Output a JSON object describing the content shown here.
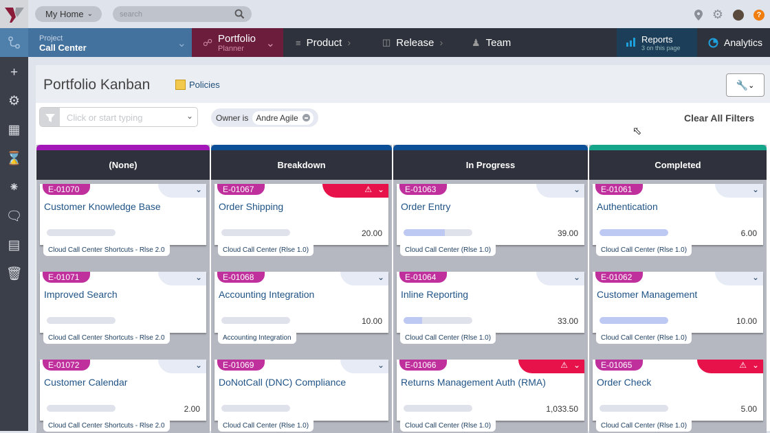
{
  "topbar": {
    "home": "My Home",
    "search_placeholder": "search"
  },
  "nav": {
    "project_label": "Project",
    "project_name": "Call Center",
    "portfolio": "Portfolio",
    "portfolio_sub": "Planner",
    "product": "Product",
    "release": "Release",
    "team": "Team",
    "reports": "Reports",
    "reports_sub": "3 on this page",
    "analytics": "Analytics"
  },
  "page": {
    "title": "Portfolio Kanban",
    "policies": "Policies",
    "filter_placeholder": "Click or start typing",
    "chip_label": "Owner is",
    "chip_value": "Andre Agile",
    "clear": "Clear All Filters"
  },
  "colors": {
    "card_id": "#c0309d",
    "warning": "#e8124b"
  },
  "columns": [
    {
      "name": "(None)",
      "color": "#a317b8",
      "cards": [
        {
          "id": "E-01070",
          "name": "Customer Knowledge Base",
          "value": "",
          "progress": 0,
          "tag": "Cloud Call Center Shortcuts - Rlse 2.0",
          "warning": false
        },
        {
          "id": "E-01071",
          "name": "Improved Search",
          "value": "",
          "progress": 0,
          "tag": "Cloud Call Center Shortcuts - Rlse 2.0",
          "warning": false
        },
        {
          "id": "E-01072",
          "name": "Customer Calendar",
          "value": "2.00",
          "progress": 0,
          "tag": "Cloud Call Center Shortcuts - Rlse 2.0",
          "warning": false
        }
      ]
    },
    {
      "name": "Breakdown",
      "color": "#0c4f97",
      "cards": [
        {
          "id": "E-01067",
          "name": "Order Shipping",
          "value": "20.00",
          "progress": 0,
          "tag": "Cloud Call Center (Rlse 1.0)",
          "warning": true
        },
        {
          "id": "E-01068",
          "name": "Accounting Integration",
          "value": "10.00",
          "progress": 0,
          "tag": "Accounting Integration",
          "warning": false
        },
        {
          "id": "E-01069",
          "name": "DoNotCall (DNC) Compliance",
          "value": "",
          "progress": 0,
          "tag": "Cloud Call Center (Rlse 1.0)",
          "warning": false
        }
      ]
    },
    {
      "name": "In Progress",
      "color": "#0c4f97",
      "cards": [
        {
          "id": "E-01063",
          "name": "Order Entry",
          "value": "39.00",
          "progress": 60,
          "tag": "Cloud Call Center (Rlse 1.0)",
          "warning": false
        },
        {
          "id": "E-01064",
          "name": "Inline Reporting",
          "value": "33.00",
          "progress": 27,
          "tag": "Cloud Call Center (Rlse 1.0)",
          "warning": false
        },
        {
          "id": "E-01066",
          "name": "Returns Management Auth (RMA)",
          "value": "1,033.50",
          "progress": 0,
          "tag": "Cloud Call Center (Rlse 1.0)",
          "warning": true
        }
      ]
    },
    {
      "name": "Completed",
      "color": "#14a58a",
      "cards": [
        {
          "id": "E-01061",
          "name": "Authentication",
          "value": "6.00",
          "progress": 100,
          "tag": "Cloud Call Center (Rlse 1.0)",
          "warning": false
        },
        {
          "id": "E-01062",
          "name": "Customer Management",
          "value": "10.00",
          "progress": 100,
          "tag": "Cloud Call Center (Rlse 1.0)",
          "warning": false
        },
        {
          "id": "E-01065",
          "name": "Order Check",
          "value": "5.00",
          "progress": 0,
          "tag": "Cloud Call Center (Rlse 1.0)",
          "warning": true
        }
      ]
    }
  ]
}
